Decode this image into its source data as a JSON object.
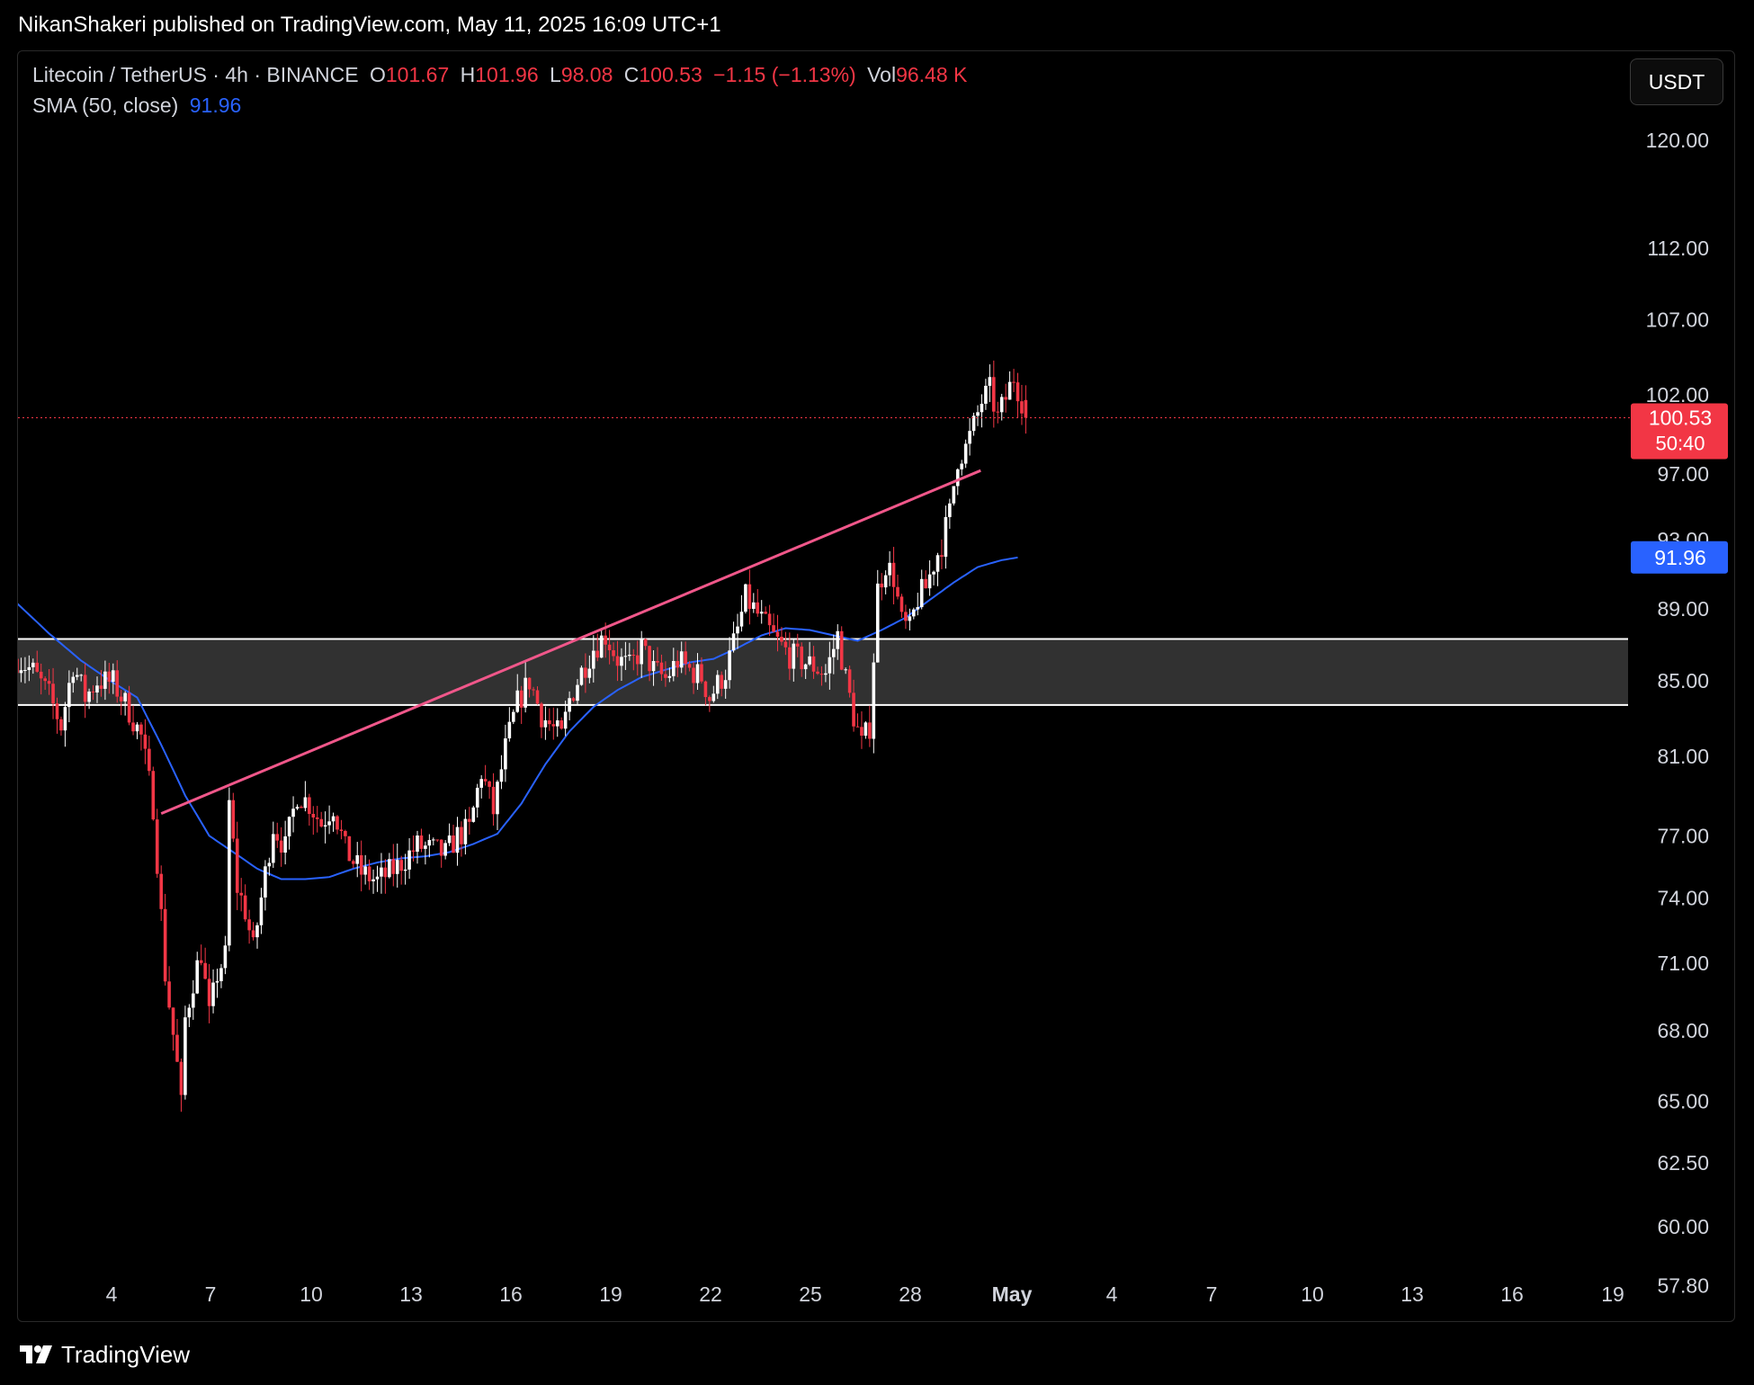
{
  "header": {
    "publisher_line": "NikanShakeri published on TradingView.com, May 11, 2025 16:09 UTC+1"
  },
  "legend": {
    "symbol": "Litecoin / TetherUS · 4h · BINANCE",
    "o_label": "O",
    "o_value": "101.67",
    "h_label": "H",
    "h_value": "101.96",
    "l_label": "L",
    "l_value": "98.08",
    "c_label": "C",
    "c_value": "100.53",
    "change": "−1.15 (−1.13%)",
    "vol_label": "Vol",
    "vol_value": "96.48 K",
    "sma_label": "SMA (50, close)",
    "sma_value": "91.96"
  },
  "currency_button": "USDT",
  "footer": {
    "brand": "TradingView"
  },
  "colors": {
    "up": "#ffffff",
    "down": "#f23645",
    "sma": "#2962ff",
    "trendline": "#f0578a",
    "zone": "#3a3a3a"
  },
  "chart_data": {
    "type": "candlestick",
    "x_ticks": [
      "4",
      "7",
      "10",
      "13",
      "16",
      "19",
      "22",
      "25",
      "28",
      "May",
      "4",
      "7",
      "10",
      "13",
      "16",
      "19"
    ],
    "y_ticks": [
      120,
      112,
      107,
      102,
      97,
      93,
      89,
      85,
      81,
      77,
      74,
      71,
      68,
      65,
      62.5,
      60,
      57.8
    ],
    "y_tick_labels": [
      "120.00",
      "112.00",
      "107.00",
      "102.00",
      "97.00",
      "93.00",
      "89.00",
      "85.00",
      "81.00",
      "77.00",
      "74.00",
      "71.00",
      "68.00",
      "65.00",
      "62.50",
      "60.00",
      "57.80"
    ],
    "scale": "log",
    "ylim": [
      56.5,
      127
    ],
    "last_price": 100.53,
    "last_price_label": "100.53",
    "countdown": "50:40",
    "sma_last_label": "91.96",
    "support_zone": [
      83.7,
      87.3
    ],
    "trendline": {
      "from": {
        "date": "Apr 8",
        "price": 78.1
      },
      "to": {
        "date": "May 11",
        "price": 97.2
      }
    },
    "price_path": [
      [
        0,
        86.2
      ],
      [
        4,
        85.5
      ],
      [
        8,
        84.2
      ],
      [
        11,
        82.6
      ],
      [
        14,
        85.9
      ],
      [
        17,
        84.1
      ],
      [
        20,
        85.0
      ],
      [
        24,
        84.9
      ],
      [
        28,
        83.4
      ],
      [
        31,
        82.0
      ],
      [
        34,
        78.5
      ],
      [
        37,
        70.5
      ],
      [
        40,
        66.5
      ],
      [
        41,
        64.8
      ],
      [
        42,
        68.5
      ],
      [
        44,
        70.2
      ],
      [
        46,
        71.5
      ],
      [
        48,
        68.6
      ],
      [
        50,
        70.5
      ],
      [
        52,
        71.3
      ],
      [
        53,
        78.6
      ],
      [
        55,
        74.5
      ],
      [
        57,
        73.4
      ],
      [
        59,
        71.6
      ],
      [
        61,
        74.0
      ],
      [
        64,
        77.5
      ],
      [
        67,
        76.4
      ],
      [
        70,
        79.1
      ],
      [
        73,
        78.6
      ],
      [
        76,
        77.6
      ],
      [
        79,
        78.5
      ],
      [
        82,
        76.3
      ],
      [
        86,
        75.2
      ],
      [
        90,
        74.8
      ],
      [
        95,
        75.5
      ],
      [
        100,
        76.5
      ],
      [
        104,
        76.3
      ],
      [
        107,
        76.1
      ],
      [
        110,
        77.0
      ],
      [
        113,
        77.3
      ],
      [
        116,
        80.2
      ],
      [
        119,
        78.2
      ],
      [
        122,
        81.4
      ],
      [
        125,
        83.8
      ],
      [
        128,
        85.0
      ],
      [
        131,
        83.2
      ],
      [
        134,
        82.4
      ],
      [
        136,
        82.0
      ],
      [
        138,
        84.0
      ],
      [
        141,
        85.5
      ],
      [
        144,
        86.8
      ],
      [
        147,
        87.5
      ],
      [
        150,
        86.2
      ],
      [
        153,
        85.7
      ],
      [
        156,
        86.8
      ],
      [
        159,
        85.6
      ],
      [
        162,
        85.1
      ],
      [
        165,
        86.1
      ],
      [
        168,
        85.6
      ],
      [
        171,
        85.2
      ],
      [
        173,
        84.1
      ],
      [
        175,
        84.8
      ],
      [
        177,
        85.5
      ],
      [
        180,
        87.8
      ],
      [
        182,
        89.6
      ],
      [
        184,
        89.0
      ],
      [
        187,
        88.0
      ],
      [
        190,
        87.1
      ],
      [
        193,
        86.4
      ],
      [
        196,
        86.1
      ],
      [
        199,
        85.8
      ],
      [
        202,
        85.4
      ],
      [
        205,
        87.5
      ],
      [
        207,
        85.1
      ],
      [
        209,
        83.1
      ],
      [
        211,
        81.6
      ],
      [
        213,
        82.6
      ],
      [
        215,
        90.1
      ],
      [
        217,
        91.6
      ],
      [
        219,
        90.8
      ],
      [
        221,
        88.2
      ],
      [
        223,
        87.8
      ],
      [
        225,
        89.6
      ],
      [
        227,
        90.2
      ],
      [
        229,
        91.6
      ],
      [
        231,
        92.8
      ],
      [
        233,
        94.6
      ],
      [
        235,
        98.0
      ],
      [
        237,
        98.6
      ],
      [
        239,
        100.0
      ],
      [
        241,
        101.6
      ],
      [
        243,
        102.3
      ],
      [
        245,
        100.5
      ],
      [
        247,
        101.8
      ],
      [
        249,
        103.2
      ],
      [
        251,
        101.7
      ],
      [
        252,
        100.53
      ]
    ],
    "sma_path": [
      [
        0,
        89.3
      ],
      [
        8,
        87.6
      ],
      [
        16,
        86.1
      ],
      [
        24,
        84.9
      ],
      [
        30,
        84.1
      ],
      [
        36,
        81.6
      ],
      [
        42,
        79.0
      ],
      [
        48,
        77.0
      ],
      [
        54,
        76.2
      ],
      [
        60,
        75.4
      ],
      [
        66,
        74.9
      ],
      [
        72,
        74.9
      ],
      [
        78,
        75.0
      ],
      [
        84,
        75.4
      ],
      [
        90,
        75.7
      ],
      [
        96,
        75.9
      ],
      [
        102,
        76.0
      ],
      [
        108,
        76.2
      ],
      [
        114,
        76.6
      ],
      [
        120,
        77.1
      ],
      [
        126,
        78.6
      ],
      [
        132,
        80.6
      ],
      [
        138,
        82.3
      ],
      [
        144,
        83.6
      ],
      [
        150,
        84.5
      ],
      [
        156,
        85.2
      ],
      [
        162,
        85.6
      ],
      [
        168,
        86.0
      ],
      [
        174,
        86.2
      ],
      [
        180,
        86.8
      ],
      [
        186,
        87.5
      ],
      [
        192,
        87.9
      ],
      [
        198,
        87.8
      ],
      [
        204,
        87.5
      ],
      [
        210,
        87.2
      ],
      [
        216,
        87.8
      ],
      [
        222,
        88.5
      ],
      [
        228,
        89.5
      ],
      [
        234,
        90.5
      ],
      [
        240,
        91.4
      ],
      [
        246,
        91.8
      ],
      [
        250,
        91.96
      ]
    ]
  }
}
